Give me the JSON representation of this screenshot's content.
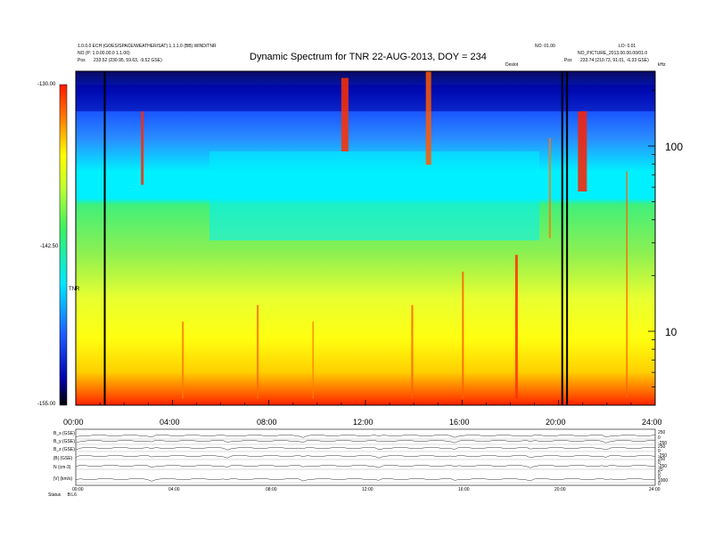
{
  "header": {
    "left_line1": "1.0.0.0 ECH (GOES/SPACE/WEATHER/SAT) 1.1.1.0 (BB) WIND/TNR",
    "left_line2": "NO (P:  1.0.00.00.0 1.1.00)",
    "left_pos_label": "Pos",
    "left_pos_value": "233.52 (230.95, 59.63, -9.52 GSE)",
    "right_top_a": "NO: 01.00",
    "right_top_b": "LO: 0.01",
    "right_line2": "NO_PICTURE_2013.00.00.00/01.0",
    "right_pos_label": "Pos",
    "right_pos_value": "233.74 (210.73, 91.01, -6.33 GSE)",
    "mid_small": "Deslot",
    "corner_small": "kHz"
  },
  "chart_data": {
    "type": "heatmap",
    "title": "Dynamic Spectrum for TNR 22-AUG-2013, DOY = 234",
    "x_ticks": [
      "00:00",
      "04:00",
      "08:00",
      "12:00",
      "16:00",
      "20:00",
      "24:00"
    ],
    "x_range_hours": [
      0,
      24
    ],
    "y_ticks_right": [
      "100",
      "10"
    ],
    "y_scale": "log",
    "colorbar_ticks": [
      "-130.00",
      "-142.50",
      "-155.00"
    ],
    "colorbar_range": [
      -155,
      -130
    ],
    "colorbar_axis_label": "TNR",
    "colormap": [
      "#000000",
      "#0000aa",
      "#1f5cff",
      "#00e8ff",
      "#3cf060",
      "#c0ff30",
      "#ffff00",
      "#ff7800",
      "#ff1a00"
    ],
    "vertical_marker_hours": [
      1.2,
      20.15,
      20.35
    ],
    "notes": "Spectrogram of radio intensity vs time (hours) and frequency (kHz, log)."
  },
  "bottom_panel": {
    "labels": [
      "B_x (GSE)",
      "B_y (GSE)",
      "B_z (GSE)",
      "|B| (GSE)",
      "N (cm-3)",
      "|V| (km/s)"
    ],
    "right_values": [
      "250",
      "0",
      "-250",
      "250",
      "0",
      "-250",
      "250",
      "0",
      "-250",
      "20",
      "0",
      "0",
      "1000",
      "0"
    ],
    "x_ticks": [
      "00:00",
      "04:00",
      "08:00",
      "12:00",
      "16:00",
      "20:00",
      "24:00"
    ],
    "footer_label": "Status",
    "footer_value": "B:L6"
  }
}
